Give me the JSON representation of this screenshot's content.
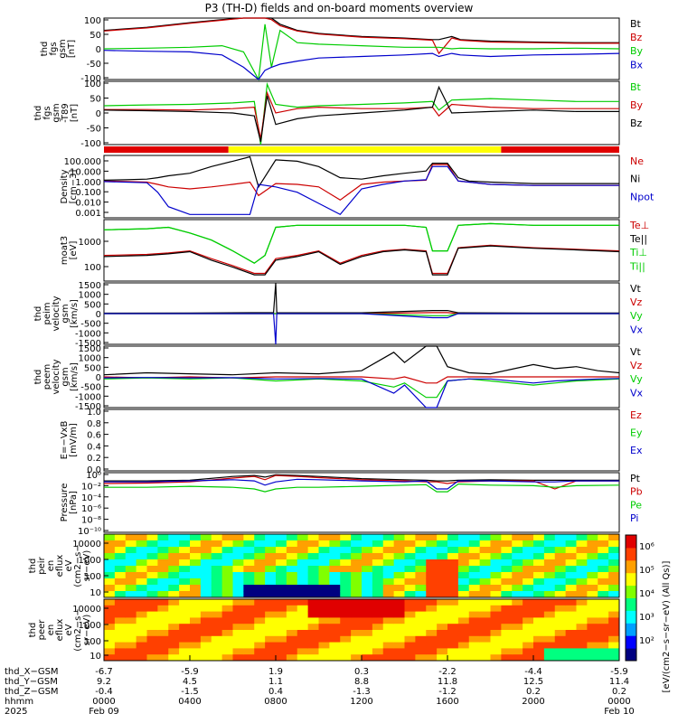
{
  "title": "P3 (TH-D) fields and on-board moments overview",
  "chart_data": [
    {
      "type": "line",
      "panel": "fgs_gsm",
      "ylabel": [
        "thd",
        "fgs",
        "gsm",
        "[nT]"
      ],
      "yticks": [
        "100",
        "50",
        "0",
        "-50",
        "-100"
      ],
      "ylim": [
        -100,
        100
      ],
      "x": [
        0,
        2,
        4,
        5.5,
        6.5,
        7.2,
        7.5,
        7.8,
        8.2,
        9,
        10,
        12,
        14,
        15.3,
        15.6,
        16.2,
        16.6,
        18,
        20,
        22,
        24
      ],
      "series": [
        {
          "name": "Bt",
          "color": "#000000",
          "values": [
            60,
            70,
            85,
            95,
            100,
            100,
            100,
            100,
            80,
            60,
            50,
            40,
            35,
            30,
            30,
            40,
            30,
            25,
            22,
            20,
            20
          ]
        },
        {
          "name": "Bz",
          "color": "#cc0000",
          "values": [
            58,
            68,
            83,
            93,
            100,
            100,
            100,
            95,
            75,
            58,
            48,
            38,
            33,
            28,
            -15,
            35,
            28,
            22,
            20,
            18,
            18
          ]
        },
        {
          "name": "By",
          "color": "#00cc00",
          "values": [
            0,
            2,
            5,
            10,
            -10,
            -100,
            80,
            -60,
            60,
            20,
            15,
            10,
            5,
            5,
            5,
            0,
            2,
            0,
            0,
            2,
            0
          ]
        },
        {
          "name": "Bx",
          "color": "#0000cc",
          "values": [
            -5,
            -8,
            -10,
            -20,
            -60,
            -100,
            -70,
            -60,
            -50,
            -40,
            -30,
            -25,
            -20,
            -15,
            -25,
            -15,
            -20,
            -25,
            -20,
            -18,
            -15
          ]
        }
      ],
      "legend": [
        "Bt",
        "Bz",
        "By",
        "Bx"
      ]
    },
    {
      "type": "line",
      "panel": "fgs_gsm_t89",
      "ylabel": [
        "thd",
        "fgs",
        "gsm",
        "-T89",
        "[nT]"
      ],
      "yticks": [
        "100",
        "50",
        "0",
        "-50",
        "-100"
      ],
      "ylim": [
        -120,
        100
      ],
      "x": [
        0,
        2,
        4,
        6,
        7,
        7.3,
        7.6,
        8,
        9,
        10,
        12,
        14,
        15.3,
        15.6,
        16.2,
        18,
        20,
        22,
        24
      ],
      "series": [
        {
          "name": "Bt",
          "color": "#00cc00",
          "values": [
            15,
            18,
            20,
            25,
            30,
            -120,
            90,
            20,
            10,
            15,
            20,
            25,
            30,
            0,
            35,
            40,
            35,
            30,
            30
          ]
        },
        {
          "name": "By",
          "color": "#cc0000",
          "values": [
            2,
            2,
            0,
            5,
            10,
            -100,
            60,
            -10,
            5,
            10,
            5,
            5,
            10,
            -20,
            20,
            10,
            5,
            5,
            5
          ]
        },
        {
          "name": "Bz",
          "color": "#000000",
          "values": [
            0,
            -2,
            -5,
            -10,
            -20,
            -110,
            50,
            -50,
            -30,
            -20,
            -10,
            0,
            10,
            80,
            -10,
            -5,
            0,
            -5,
            -5
          ]
        }
      ],
      "legend": [
        "Bt",
        "By",
        "Bz"
      ]
    },
    {
      "type": "line",
      "panel": "density",
      "ylabel": [
        "Density",
        "[cm−3]"
      ],
      "yticks": [
        "100.000",
        "10.000",
        "1.000",
        "0.100",
        "0.010",
        "0.001"
      ],
      "log": true,
      "ylim": [
        0.0005,
        200
      ],
      "x": [
        0,
        1,
        2,
        2.5,
        3,
        4,
        5,
        6,
        6.8,
        7.2,
        8,
        9,
        10,
        11,
        12,
        13,
        14,
        15,
        15.3,
        16,
        16.5,
        17,
        18,
        20,
        22,
        24
      ],
      "series": [
        {
          "name": "Ne",
          "color": "#cc0000",
          "values": [
            1,
            0.9,
            0.8,
            0.5,
            0.3,
            0.2,
            0.3,
            0.5,
            0.8,
            0.05,
            0.6,
            0.5,
            0.3,
            0.02,
            0.5,
            0.8,
            1,
            1.2,
            30,
            30,
            1,
            0.8,
            0.5,
            0.4,
            0.4,
            0.4
          ]
        },
        {
          "name": "Ni",
          "color": "#000000",
          "values": [
            1.2,
            1.3,
            1.5,
            2,
            3,
            5,
            20,
            60,
            150,
            0.3,
            80,
            60,
            20,
            2,
            1.5,
            3,
            5,
            8,
            40,
            40,
            2,
            1,
            0.8,
            0.6,
            0.6,
            0.6
          ]
        },
        {
          "name": "Npot",
          "color": "#0000cc",
          "values": [
            0.9,
            0.8,
            0.7,
            0.1,
            0.005,
            0.001,
            0.001,
            0.001,
            0.001,
            0.5,
            0.3,
            0.1,
            0.01,
            0.001,
            0.2,
            0.5,
            1,
            1.3,
            20,
            20,
            1,
            0.8,
            0.5,
            0.4,
            0.4,
            0.4
          ]
        }
      ],
      "legend": [
        "Ne",
        "Ni",
        "Npot"
      ]
    },
    {
      "type": "line",
      "panel": "temperature",
      "ylabel": [
        "moat3",
        "[eV]"
      ],
      "yticks": [
        "1000",
        "100"
      ],
      "log": true,
      "ylim": [
        20,
        5000
      ],
      "x": [
        0,
        2,
        3,
        4,
        5,
        6,
        7,
        7.5,
        8,
        9,
        10,
        11,
        12,
        13,
        14,
        15,
        15.3,
        16,
        16.5,
        18,
        20,
        22,
        24
      ],
      "series": [
        {
          "name": "Te⊥",
          "color": "#cc0000",
          "values": [
            200,
            220,
            250,
            300,
            150,
            80,
            40,
            40,
            150,
            200,
            300,
            100,
            200,
            300,
            350,
            300,
            40,
            40,
            400,
            500,
            400,
            350,
            300
          ]
        },
        {
          "name": "Te||",
          "color": "#000000",
          "values": [
            180,
            200,
            230,
            280,
            130,
            70,
            35,
            35,
            130,
            180,
            280,
            90,
            180,
            280,
            330,
            280,
            35,
            35,
            380,
            470,
            380,
            330,
            280
          ]
        },
        {
          "name": "Ti⊥",
          "color": "#00cc00",
          "values": [
            2000,
            2200,
            2500,
            1500,
            800,
            300,
            100,
            200,
            2500,
            3000,
            3000,
            3000,
            3000,
            3000,
            3000,
            2500,
            300,
            300,
            3000,
            3500,
            3000,
            3000,
            3000
          ]
        },
        {
          "name": "Ti||",
          "color": "#00cc00",
          "values": [
            2000,
            2200,
            2500,
            1500,
            800,
            300,
            100,
            200,
            2500,
            3000,
            3000,
            3000,
            3000,
            3000,
            3000,
            2500,
            300,
            300,
            3000,
            3500,
            3000,
            3000,
            3000
          ]
        }
      ],
      "legend": [
        "Te⊥",
        "Te||",
        "Ti⊥",
        "Ti||"
      ]
    },
    {
      "type": "line",
      "panel": "peim_velocity",
      "ylabel": [
        "thd",
        "peim",
        "velocity",
        "gsm",
        "[km/s]"
      ],
      "yticks": [
        "1500",
        "1000",
        "500",
        "0",
        "-500",
        "-1000",
        "-1500"
      ],
      "ylim": [
        -1500,
        1500
      ],
      "x": [
        0,
        4,
        7.9,
        8,
        8.05,
        12,
        15.3,
        16,
        16.5,
        20,
        24
      ],
      "series": [
        {
          "name": "Vt",
          "color": "#000000",
          "values": [
            20,
            30,
            50,
            1500,
            40,
            40,
            150,
            150,
            40,
            30,
            30
          ]
        },
        {
          "name": "Vz",
          "color": "#cc0000",
          "values": [
            0,
            0,
            0,
            0,
            0,
            0,
            50,
            50,
            0,
            0,
            0
          ]
        },
        {
          "name": "Vy",
          "color": "#00cc00",
          "values": [
            0,
            0,
            0,
            0,
            0,
            0,
            -100,
            -100,
            0,
            0,
            0
          ]
        },
        {
          "name": "Vx",
          "color": "#0000cc",
          "values": [
            0,
            0,
            0,
            -1500,
            0,
            0,
            -200,
            -200,
            0,
            0,
            0
          ]
        }
      ],
      "legend": [
        "Vt",
        "Vz",
        "Vy",
        "Vx"
      ]
    },
    {
      "type": "line",
      "panel": "peem_velocity",
      "ylabel": [
        "thd",
        "peem",
        "velocity",
        "gsm",
        "[km/s]"
      ],
      "yticks": [
        "1500",
        "1000",
        "500",
        "0",
        "-500",
        "-1000",
        "-1500"
      ],
      "ylim": [
        -1500,
        1500
      ],
      "x": [
        0,
        2,
        4,
        6,
        8,
        10,
        12,
        13.5,
        14,
        15,
        15.5,
        16,
        17,
        18,
        20,
        21,
        22,
        23,
        24
      ],
      "series": [
        {
          "name": "Vt",
          "color": "#000000",
          "values": [
            100,
            200,
            150,
            100,
            200,
            150,
            300,
            1200,
            700,
            1500,
            1500,
            500,
            200,
            150,
            600,
            400,
            500,
            300,
            200
          ]
        },
        {
          "name": "Vz",
          "color": "#cc0000",
          "values": [
            0,
            -50,
            0,
            -50,
            0,
            0,
            0,
            -100,
            0,
            -300,
            -300,
            0,
            0,
            0,
            0,
            0,
            0,
            0,
            0
          ]
        },
        {
          "name": "Vy",
          "color": "#00cc00",
          "values": [
            -100,
            -50,
            -100,
            -50,
            -200,
            -100,
            -200,
            -500,
            -300,
            -1000,
            -1000,
            -200,
            -100,
            -200,
            -400,
            -300,
            -200,
            -150,
            -100
          ]
        },
        {
          "name": "Vx",
          "color": "#0000cc",
          "values": [
            -50,
            -30,
            -50,
            -40,
            -100,
            -80,
            -100,
            -800,
            -400,
            -1500,
            -1500,
            -200,
            -100,
            -100,
            -300,
            -200,
            -150,
            -100,
            -80
          ]
        }
      ],
      "legend": [
        "Vt",
        "Vz",
        "Vy",
        "Vx"
      ]
    },
    {
      "type": "line",
      "panel": "efield",
      "ylabel": [
        "E=−VxB",
        "[mV/m]"
      ],
      "yticks": [
        "1.0",
        "0.8",
        "0.6",
        "0.4",
        "0.2",
        "0.0"
      ],
      "ylim": [
        0,
        1
      ],
      "series": [],
      "legend": [
        "Ez",
        "Ey",
        "Ex"
      ]
    },
    {
      "type": "line",
      "panel": "pressure",
      "ylabel": [
        "Pressure",
        "[nPa]"
      ],
      "yticks": [
        "10⁰",
        "10⁻²",
        "10⁻⁴",
        "10⁻⁶",
        "10⁻⁸",
        "10⁻¹⁰"
      ],
      "log": true,
      "ylim": [
        1e-10,
        10
      ],
      "x": [
        0,
        2,
        4,
        6,
        7,
        7.5,
        8,
        9,
        10,
        12,
        14,
        15,
        15.5,
        16,
        16.5,
        18,
        20,
        21,
        22,
        24
      ],
      "series": [
        {
          "name": "Pt",
          "color": "#000000",
          "values": [
            0.3,
            0.3,
            0.4,
            2,
            3,
            1.5,
            4,
            3,
            2,
            0.8,
            0.5,
            0.4,
            0.3,
            0.3,
            0.4,
            0.5,
            0.4,
            0.4,
            0.4,
            0.4
          ]
        },
        {
          "name": "Pb",
          "color": "#cc0000",
          "values": [
            0.1,
            0.12,
            0.2,
            1,
            2,
            0.5,
            3,
            2,
            1.2,
            0.5,
            0.3,
            0.2,
            0.2,
            0.1,
            0.2,
            0.3,
            0.3,
            0.01,
            0.3,
            0.3
          ]
        },
        {
          "name": "Pe",
          "color": "#00cc00",
          "values": [
            0.02,
            0.02,
            0.03,
            0.02,
            0.01,
            0.003,
            0.01,
            0.02,
            0.02,
            0.03,
            0.05,
            0.06,
            0.003,
            0.003,
            0.08,
            0.05,
            0.04,
            0.02,
            0.04,
            0.05
          ]
        },
        {
          "name": "Pi",
          "color": "#0000cc",
          "values": [
            0.2,
            0.2,
            0.3,
            0.5,
            0.3,
            0.05,
            0.2,
            0.6,
            0.5,
            0.3,
            0.2,
            0.3,
            0.01,
            0.01,
            0.3,
            0.3,
            0.2,
            0.2,
            0.3,
            0.3
          ]
        }
      ],
      "legend": [
        "Pt",
        "Pb",
        "Pe",
        "Pi"
      ]
    },
    {
      "type": "heatmap",
      "panel": "peir_eflux",
      "ylabel": [
        "thd",
        "peir",
        "en",
        "eflux",
        "eV",
        "(cm2−s−",
        "sr−eV)"
      ],
      "yticks": [
        "10000",
        "1000",
        "100",
        "10"
      ],
      "log": true,
      "ylim": [
        5,
        30000
      ]
    },
    {
      "type": "heatmap",
      "panel": "peer_eflux",
      "ylabel": [
        "thd",
        "peer",
        "en",
        "eflux",
        "eV",
        "(cm2−s−",
        "sr−eV)"
      ],
      "yticks": [
        "10000",
        "1000",
        "100",
        "10"
      ],
      "log": true,
      "ylim": [
        5,
        30000
      ]
    }
  ],
  "colorbar": {
    "ticks": [
      "10⁶",
      "10⁵",
      "10⁴",
      "10³",
      "10²"
    ],
    "label": "[eV/(cm2−s−sr−eV) (All Qs)]"
  },
  "x_axis": {
    "row_labels": [
      "thd_X−GSM",
      "thd_Y−GSM",
      "thd_Z−GSM",
      "hhmm",
      "2025"
    ],
    "ticks": [
      {
        "x": "-6.7",
        "y": "9.2",
        "z": "-0.4",
        "hhmm": "0000",
        "date": "Feb 09"
      },
      {
        "x": "-5.9",
        "y": "4.5",
        "z": "-1.5",
        "hhmm": "0400",
        "date": ""
      },
      {
        "x": "1.9",
        "y": "1.1",
        "z": "0.4",
        "hhmm": "0800",
        "date": ""
      },
      {
        "x": "0.3",
        "y": "8.8",
        "z": "-1.3",
        "hhmm": "1200",
        "date": ""
      },
      {
        "x": "-2.2",
        "y": "11.8",
        "z": "-1.2",
        "hhmm": "1600",
        "date": ""
      },
      {
        "x": "-4.4",
        "y": "12.5",
        "z": "0.2",
        "hhmm": "2000",
        "date": ""
      },
      {
        "x": "-5.9",
        "y": "11.4",
        "z": "0.2",
        "hhmm": "0000",
        "date": "Feb 10"
      }
    ]
  },
  "mode_bar": {
    "segments": [
      {
        "from": 0,
        "to": 5.8,
        "color": "#e00000"
      },
      {
        "from": 5.8,
        "to": 18.5,
        "color": "#ffff00"
      },
      {
        "from": 18.5,
        "to": 24,
        "color": "#e00000"
      }
    ]
  }
}
